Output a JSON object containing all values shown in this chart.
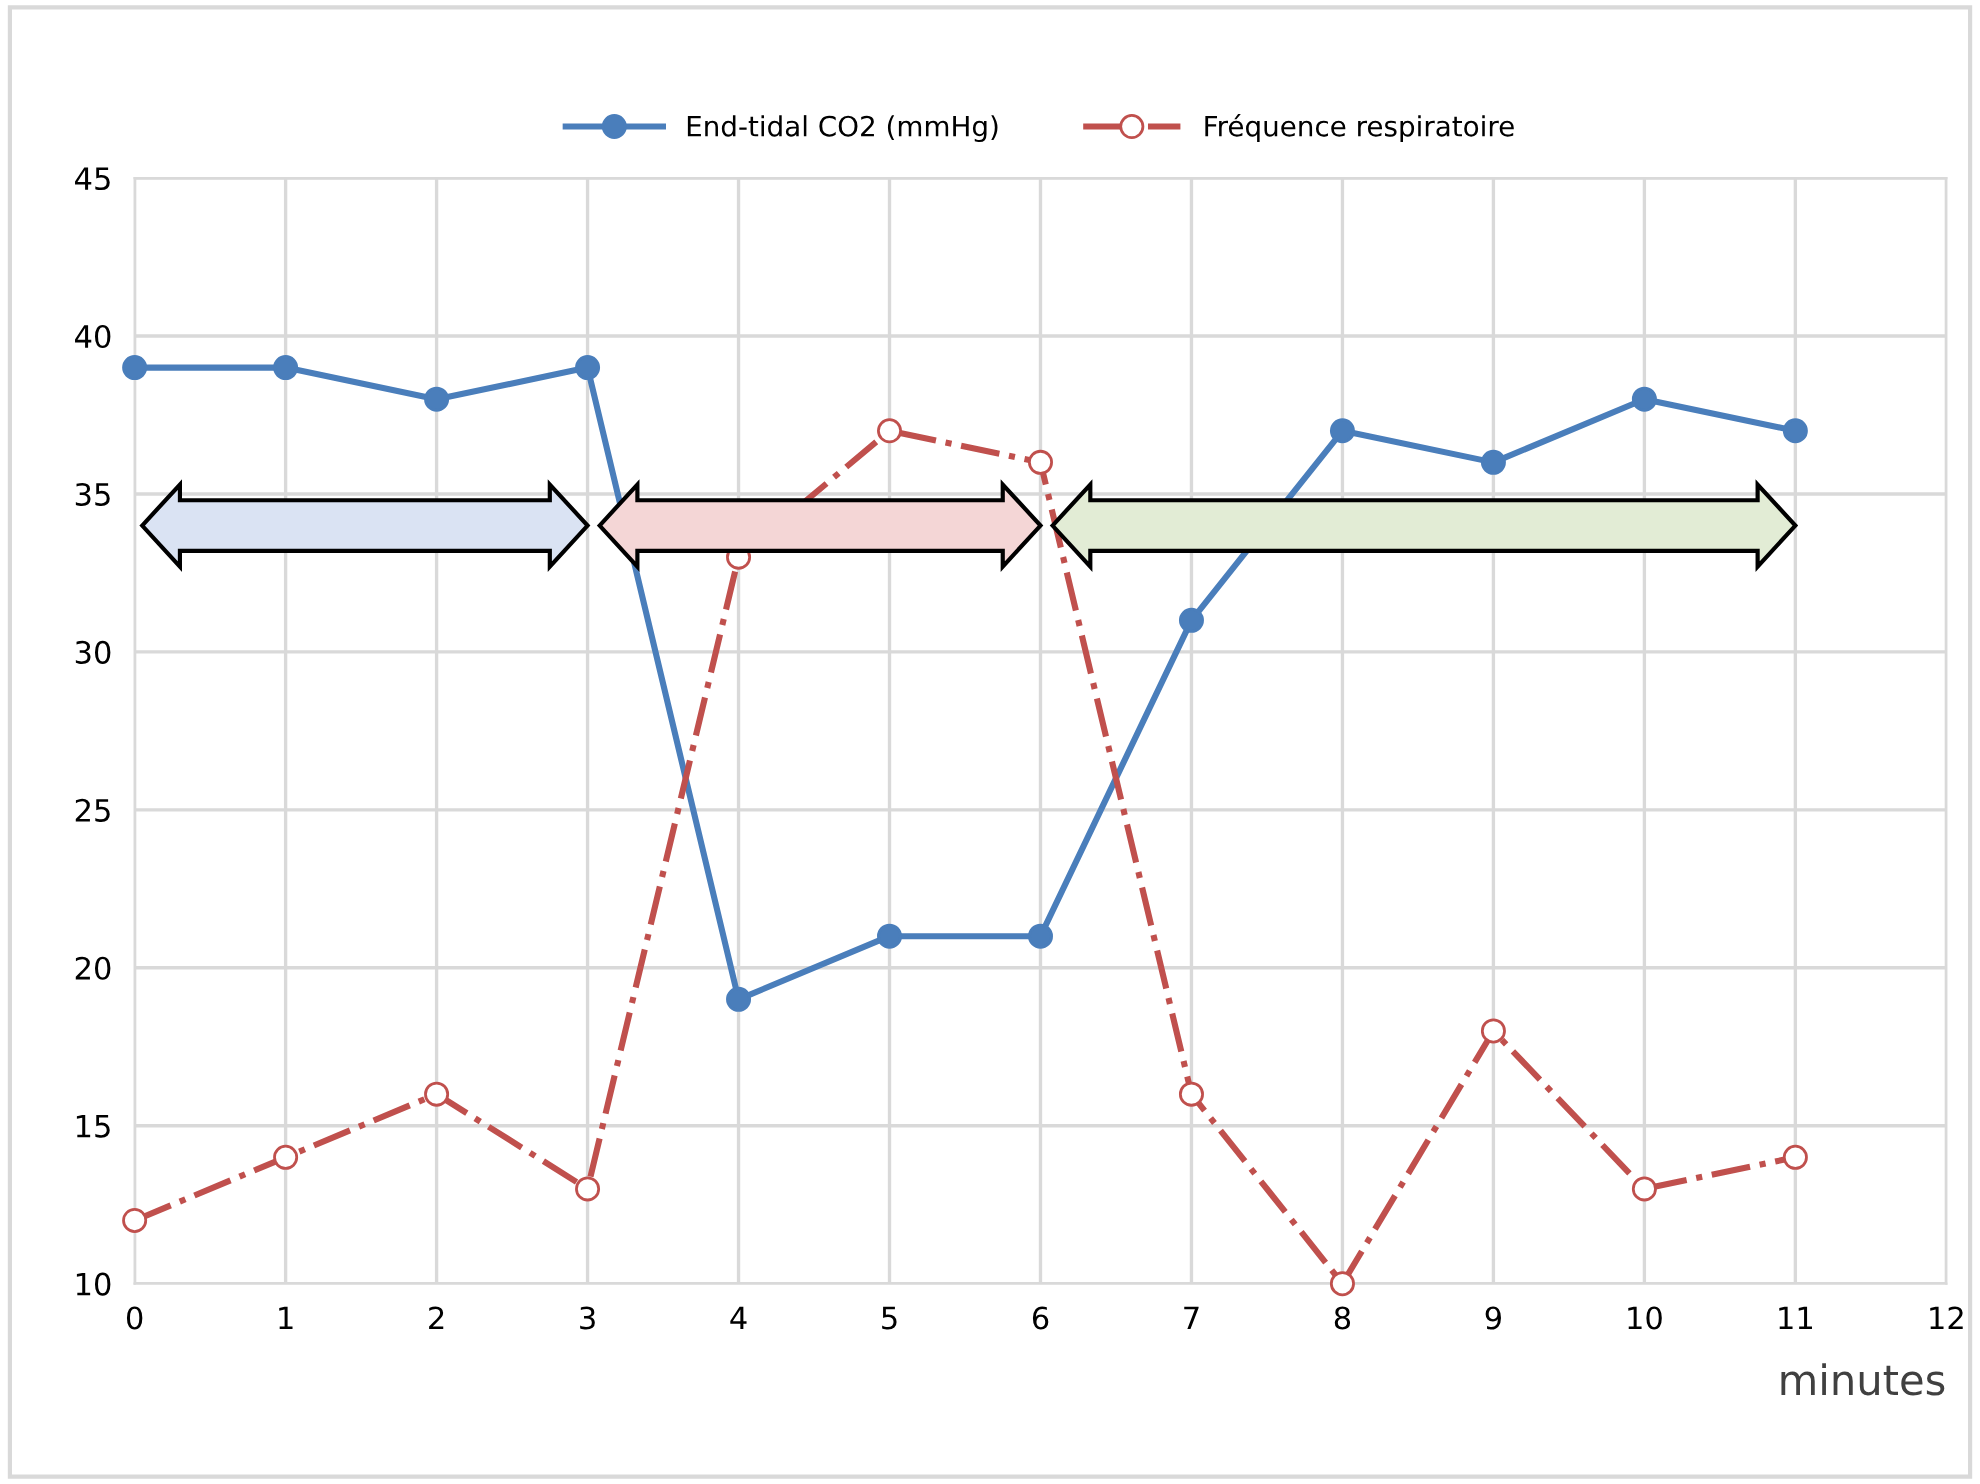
{
  "chart_data": {
    "type": "line",
    "xlabel": "minutes",
    "x": [
      0,
      1,
      2,
      3,
      4,
      5,
      6,
      7,
      8,
      9,
      10,
      11
    ],
    "series": [
      {
        "name": "End-tidal CO2 (mmHg)",
        "color": "#4a7ebb",
        "marker": "circle",
        "line_style": "solid",
        "values": [
          39,
          39,
          38,
          39,
          19,
          21,
          21,
          31,
          37,
          36,
          38,
          37
        ]
      },
      {
        "name": "Fréquence respiratoire",
        "color": "#c0504d",
        "marker": "circle",
        "line_style": "dashdot",
        "values": [
          12,
          14,
          16,
          13,
          33,
          37,
          36,
          16,
          10,
          18,
          13,
          14
        ]
      }
    ],
    "xlim": [
      0,
      12
    ],
    "xticks": [
      0,
      1,
      2,
      3,
      4,
      5,
      6,
      7,
      8,
      9,
      10,
      11,
      12
    ],
    "ylim": [
      10,
      45
    ],
    "yticks": [
      10,
      15,
      20,
      25,
      30,
      35,
      40,
      45
    ],
    "grid": true,
    "legend": "top"
  }
}
